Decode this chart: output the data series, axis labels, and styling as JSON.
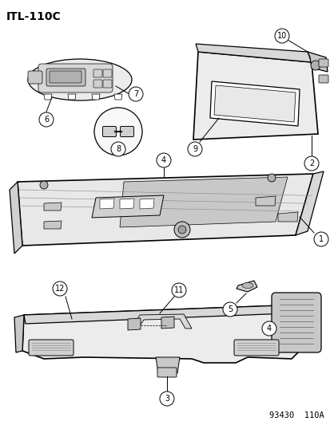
{
  "title": "ITL-110C",
  "footer": "93430  110A",
  "bg_color": "#ffffff",
  "title_fontsize": 10,
  "footer_fontsize": 7.5,
  "lw": 0.9,
  "lw_thin": 0.5,
  "lw_thick": 1.2
}
